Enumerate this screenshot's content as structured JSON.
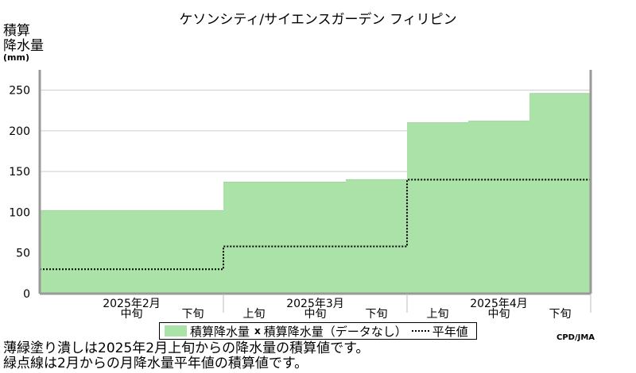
{
  "header": {
    "title": "ケソンシティ/サイエンスガーデン フィリピン"
  },
  "axis": {
    "ylabel": "積算\n降水量",
    "yunit": "(mm)"
  },
  "legend": {
    "accumulated": "積算降水量",
    "missing_mark": "x",
    "missing": "積算降水量（データなし）",
    "normal": "平年値"
  },
  "credit": "CPD/JMA",
  "footnotes": [
    "薄緑塗り潰しは2025年2月上旬からの降水量の積算値です。",
    "緑点線は2月からの月降水量平年値の積算値です。"
  ],
  "colors": {
    "fill": "#aae2a8",
    "grid": "#cccccc",
    "frame": "#999999",
    "normal_line": "#000000"
  },
  "chart_data": {
    "type": "area",
    "title": "ケソンシティ/サイエンスガーデン フィリピン",
    "ylabel": "積算降水量 (mm)",
    "ylim": [
      0,
      275
    ],
    "yticks": [
      0,
      50,
      100,
      150,
      200,
      250
    ],
    "grid": true,
    "legend_position": "bottom",
    "periods": [
      {
        "label": "上旬",
        "month": "2025年2月",
        "shown": false
      },
      {
        "label": "中旬",
        "month": "2025年2月",
        "shown": true
      },
      {
        "label": "下旬",
        "month": "2025年2月",
        "shown": true
      },
      {
        "label": "上旬",
        "month": "2025年3月",
        "shown": true
      },
      {
        "label": "中旬",
        "month": "2025年3月",
        "shown": true
      },
      {
        "label": "下旬",
        "month": "2025年3月",
        "shown": true
      },
      {
        "label": "上旬",
        "month": "2025年4月",
        "shown": true
      },
      {
        "label": "中旬",
        "month": "2025年4月",
        "shown": true
      },
      {
        "label": "下旬",
        "month": "2025年4月",
        "shown": true
      }
    ],
    "months": [
      "2025年2月",
      "2025年3月",
      "2025年4月"
    ],
    "series": [
      {
        "name": "積算降水量",
        "values": [
          102,
          102,
          102,
          137,
          137,
          140,
          210,
          212,
          246
        ]
      },
      {
        "name": "平年値",
        "values": [
          30,
          30,
          30,
          58,
          58,
          58,
          140,
          140,
          140
        ]
      }
    ]
  }
}
